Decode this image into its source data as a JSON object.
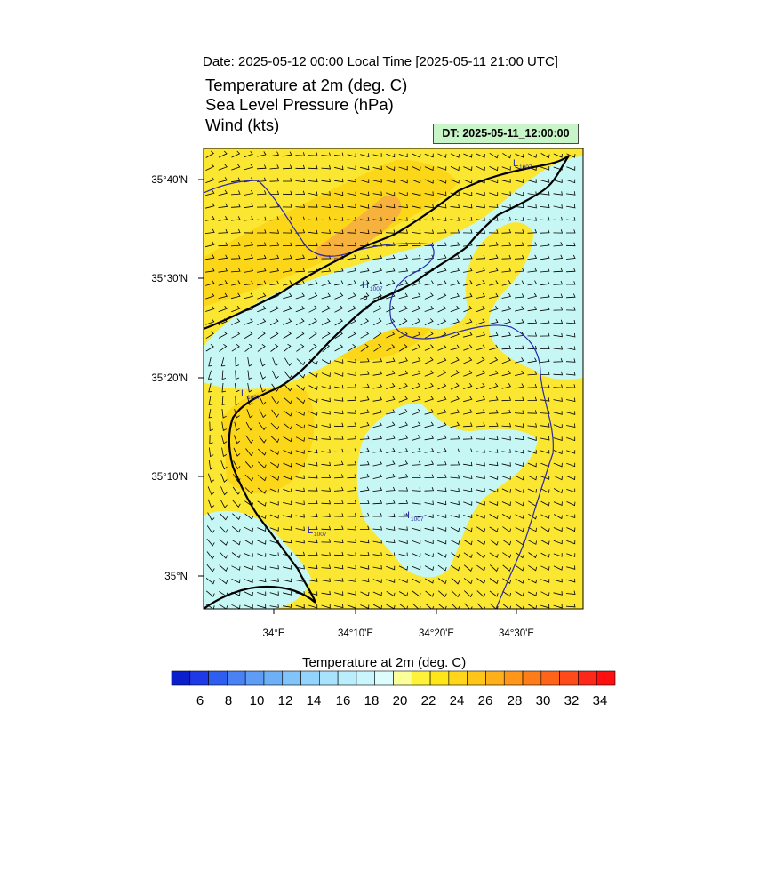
{
  "header": {
    "date_line": "Date: 2025-05-12  00:00 Local Time [2025-05-11  21:00 UTC]",
    "titles": [
      "Temperature at 2m   (deg. C)",
      "Sea Level Pressure   (hPa)",
      "Wind   (kts)"
    ],
    "dt_label": "DT: 2025-05-11_12:00:00"
  },
  "map": {
    "lat_labels": [
      "35°40'N",
      "35°30'N",
      "35°20'N",
      "35°10'N",
      "35°N"
    ],
    "lon_labels": [
      "34°E",
      "34°10'E",
      "34°20'E",
      "34°30'E"
    ],
    "pressure_labels": [
      {
        "type": "L",
        "value": "1007"
      },
      {
        "type": "H",
        "value": "1007"
      },
      {
        "type": "L",
        "value": "1007"
      },
      {
        "type": "H",
        "value": "1007"
      },
      {
        "type": "L",
        "value": "1007"
      }
    ]
  },
  "colorbar": {
    "title": "Temperature at 2m  (deg. C)",
    "tick_labels": [
      "6",
      "8",
      "10",
      "12",
      "14",
      "16",
      "18",
      "20",
      "22",
      "24",
      "26",
      "28",
      "30",
      "32",
      "34"
    ],
    "colors": [
      "#0a1ecc",
      "#1e3ae6",
      "#2e5ef0",
      "#4a82f4",
      "#5e9cf6",
      "#6eb0f8",
      "#80c4fa",
      "#92d4fc",
      "#a8e2fc",
      "#baeefc",
      "#c8f6fc",
      "#ddfcfc",
      "#fbff9a",
      "#fff23a",
      "#ffe619",
      "#ffd619",
      "#ffc619",
      "#ffaf19",
      "#ff9619",
      "#ff7d19",
      "#ff6419",
      "#ff4b19",
      "#ff2719",
      "#ff0f0f"
    ]
  },
  "colors": {
    "warm_fill": "#fbe631",
    "warmer_fill": "#fcd619",
    "hot_fill": "#f6b23c",
    "cool_fill": "#c6f7f5",
    "isobar": "#2a2aa8",
    "coast": "#000000"
  }
}
